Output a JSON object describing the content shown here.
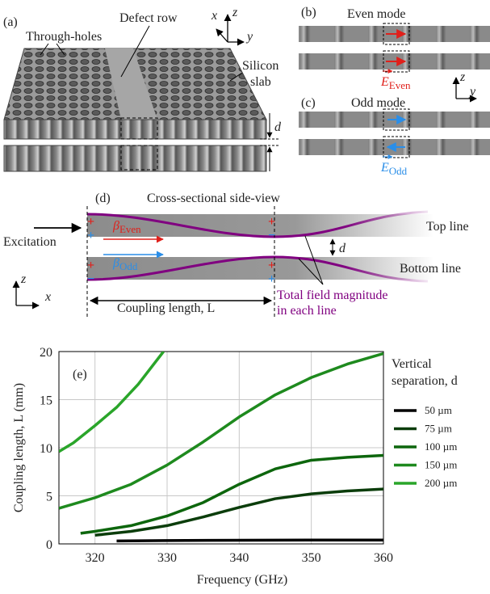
{
  "panel_a": {
    "label": "(a)",
    "through_holes": "Through-holes",
    "defect_row": "Defect row",
    "silicon": "Silicon",
    "slab": "slab",
    "d": "d",
    "axis_x": "x",
    "axis_z": "z",
    "axis_y": "y"
  },
  "panel_b": {
    "label": "(b)",
    "title": "Even mode",
    "field": "E",
    "field_sub": "Even"
  },
  "panel_c": {
    "label": "(c)",
    "title": "Odd mode",
    "field": "E",
    "field_sub": "Odd",
    "axis_z": "z",
    "axis_y": "y"
  },
  "panel_d": {
    "label": "(d)",
    "title": "Cross-sectional side-view",
    "excitation": "Excitation",
    "beta": "β",
    "beta_even_sub": "Even",
    "beta_odd_sub": "Odd",
    "plus": "+",
    "minus": "−",
    "top_line": "Top line",
    "bottom_line": "Bottom line",
    "d": "d",
    "field_note": [
      "Total field magnitude",
      "in each line"
    ],
    "coupling_length": "Coupling length, L",
    "axis_z": "z",
    "axis_x": "x"
  },
  "chart_data": {
    "type": "line",
    "label": "(e)",
    "xlabel": "Frequency (GHz)",
    "ylabel": "Coupling length, L (mm)",
    "legend_title": [
      "Vertical",
      "separation, d"
    ],
    "xlim": [
      315,
      360
    ],
    "ylim": [
      0,
      20
    ],
    "xticks": [
      320,
      330,
      340,
      350,
      360
    ],
    "yticks": [
      0,
      5,
      10,
      15,
      20
    ],
    "grid": true,
    "series": [
      {
        "name": "50 µm",
        "color": "#000000",
        "x": [
          323,
          330,
          340,
          350,
          360
        ],
        "values": [
          0.3,
          0.35,
          0.38,
          0.4,
          0.4
        ]
      },
      {
        "name": "75 µm",
        "color": "#0b3d0b",
        "x": [
          320,
          325,
          330,
          335,
          340,
          345,
          350,
          355,
          360
        ],
        "values": [
          0.9,
          1.3,
          1.9,
          2.8,
          3.8,
          4.7,
          5.2,
          5.5,
          5.7
        ]
      },
      {
        "name": "100 µm",
        "color": "#0d660d",
        "x": [
          318,
          320,
          325,
          330,
          335,
          340,
          345,
          350,
          355,
          360
        ],
        "values": [
          1.1,
          1.3,
          1.9,
          2.9,
          4.3,
          6.2,
          7.8,
          8.7,
          9.0,
          9.2
        ]
      },
      {
        "name": "150 µm",
        "color": "#1e8a1e",
        "x": [
          315,
          320,
          325,
          330,
          335,
          340,
          345,
          350,
          355,
          360
        ],
        "values": [
          3.7,
          4.8,
          6.2,
          8.2,
          10.6,
          13.2,
          15.5,
          17.3,
          18.7,
          19.8
        ]
      },
      {
        "name": "200 µm",
        "color": "#2aa52a",
        "x": [
          315,
          317,
          320,
          323,
          326,
          329.5
        ],
        "values": [
          9.6,
          10.5,
          12.3,
          14.2,
          16.6,
          20
        ]
      }
    ]
  }
}
